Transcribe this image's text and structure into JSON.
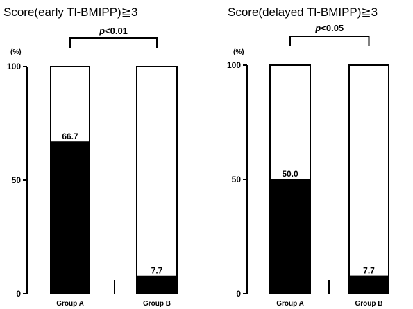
{
  "chart_data": [
    {
      "type": "bar",
      "stacked_to_100": true,
      "title": "Score(early Tl-BMIPP)≧3",
      "significance": {
        "p_prefix": "p",
        "p_rest": "<0.01"
      },
      "ylabel": "(%)",
      "ylim": [
        0,
        100
      ],
      "yticks": [
        "0",
        "50",
        "100"
      ],
      "categories": [
        "Group A",
        "Group B"
      ],
      "values": [
        66.7,
        7.7
      ],
      "data_labels": [
        "66.7",
        "7.7"
      ],
      "colors": {
        "filled": "#000000",
        "remainder": "#ffffff"
      }
    },
    {
      "type": "bar",
      "stacked_to_100": true,
      "title": "Score(delayed Tl-BMIPP)≧3",
      "significance": {
        "p_prefix": "p",
        "p_rest": "<0.05"
      },
      "ylabel": "(%)",
      "ylim": [
        0,
        100
      ],
      "yticks": [
        "0",
        "50",
        "100"
      ],
      "categories": [
        "Group A",
        "Group B"
      ],
      "values": [
        50.0,
        7.7
      ],
      "data_labels": [
        "50.0",
        "7.7"
      ],
      "colors": {
        "filled": "#000000",
        "remainder": "#ffffff"
      }
    }
  ]
}
